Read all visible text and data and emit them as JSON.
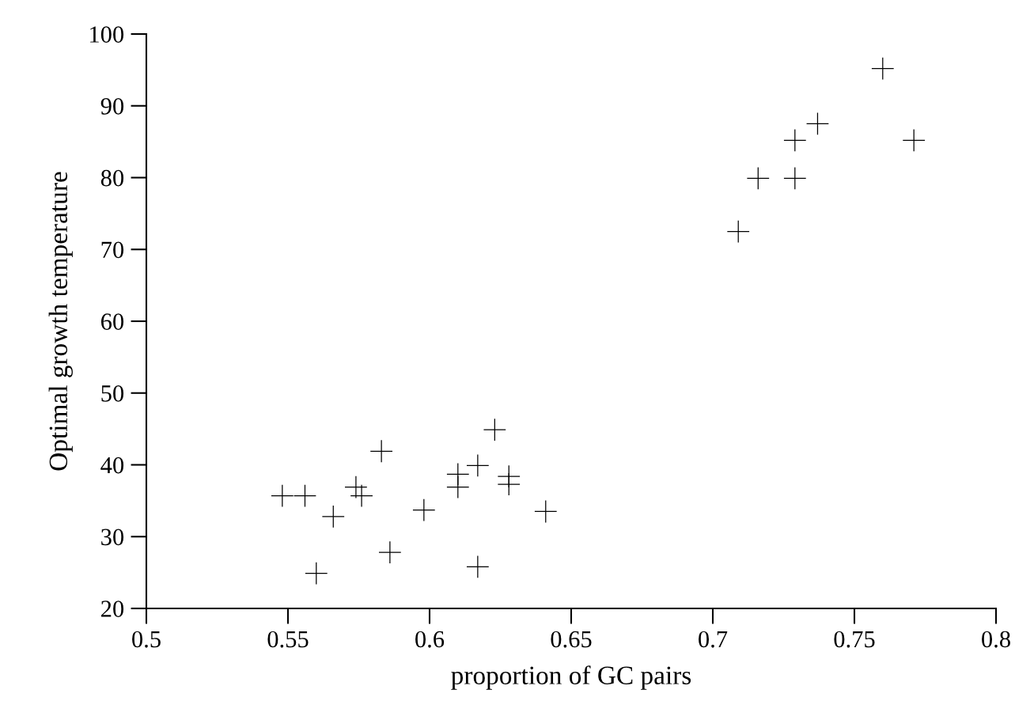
{
  "chart_data": {
    "type": "scatter",
    "xlabel": "proportion of GC pairs",
    "ylabel": "Optimal growth temperature",
    "x": [
      0.548,
      0.556,
      0.566,
      0.56,
      0.574,
      0.576,
      0.583,
      0.586,
      0.598,
      0.61,
      0.61,
      0.617,
      0.617,
      0.623,
      0.628,
      0.628,
      0.641,
      0.76,
      0.737,
      0.729,
      0.771,
      0.716,
      0.729,
      0.709
    ],
    "values": [
      35.7,
      35.7,
      32.8,
      24.9,
      36.9,
      35.7,
      41.9,
      27.8,
      33.7,
      38.7,
      36.9,
      39.9,
      25.8,
      44.9,
      38.4,
      37.3,
      33.5,
      95.2,
      87.5,
      85.2,
      85.2,
      79.9,
      79.9,
      72.5
    ],
    "color": "#000000",
    "marker": "cross",
    "xlim": [
      0.5,
      0.8
    ],
    "xticks": [
      0.5,
      0.55,
      0.6,
      0.65,
      0.7,
      0.75,
      0.8
    ],
    "ylim": [
      20,
      100
    ],
    "yticks": [
      20,
      30,
      40,
      50,
      60,
      70,
      80,
      90,
      100
    ],
    "grid": false,
    "legend": false
  }
}
